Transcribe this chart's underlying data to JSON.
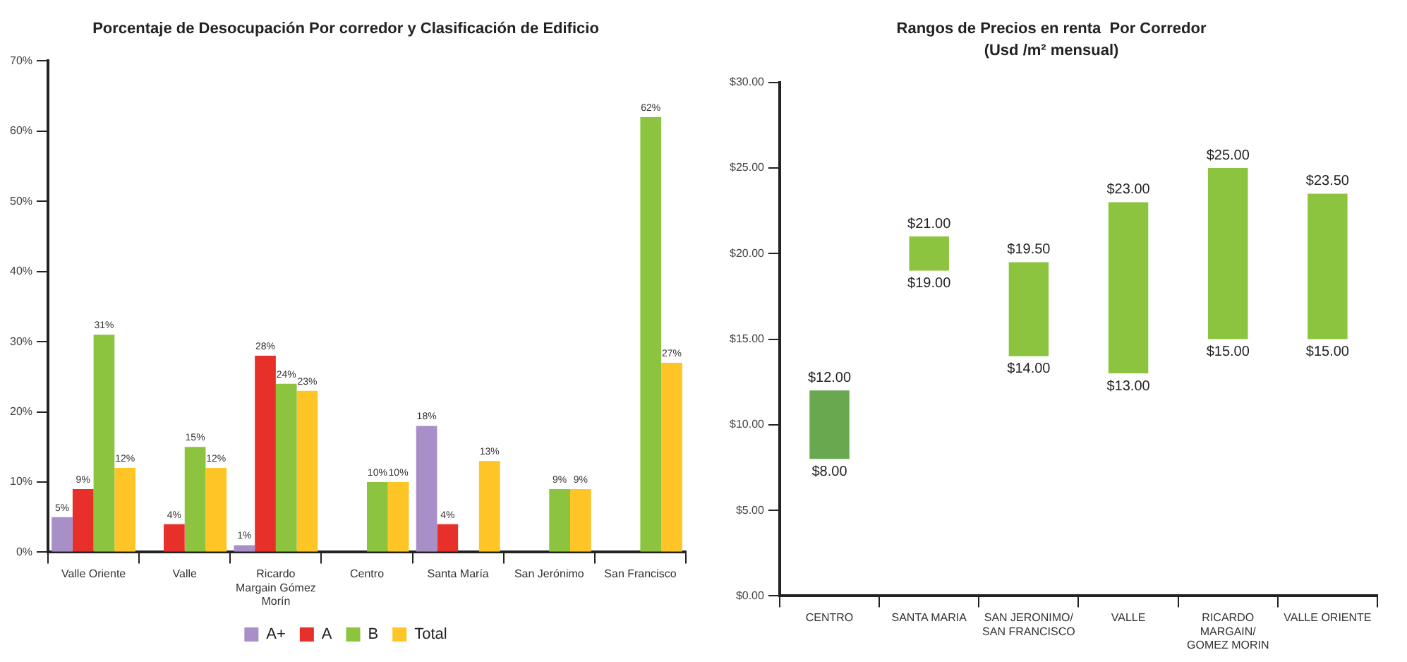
{
  "chart_data": [
    {
      "type": "bar",
      "title": "Porcentaje de Desocupación Por corredor y Clasificación de Edificio",
      "categories": [
        "Valle Oriente",
        "Valle",
        "Ricardo Margain Gómez Morín",
        "Centro",
        "Santa María",
        "San Jerónimo",
        "San Francisco"
      ],
      "series": [
        {
          "name": "A+",
          "color": "#a98fc8",
          "values": [
            5,
            null,
            1,
            null,
            18,
            null,
            null
          ],
          "value_labels": [
            "5%",
            null,
            "1%",
            null,
            "18%",
            null,
            null
          ]
        },
        {
          "name": "A",
          "color": "#e8302a",
          "values": [
            9,
            4,
            28,
            null,
            4,
            null,
            null
          ],
          "value_labels": [
            "9%",
            "4%",
            "28%",
            null,
            "4%",
            null,
            null
          ]
        },
        {
          "name": "B",
          "color": "#8cc43f",
          "values": [
            31,
            15,
            24,
            10,
            null,
            9,
            62
          ],
          "value_labels": [
            "31%",
            "15%",
            "24%",
            "10%",
            null,
            "9%",
            "62%"
          ]
        },
        {
          "name": "Total",
          "color": "#ffc425",
          "values": [
            12,
            12,
            23,
            10,
            13,
            9,
            27
          ],
          "value_labels": [
            "12%",
            "12%",
            "23%",
            "10%",
            "13%",
            "9%",
            "27%"
          ]
        }
      ],
      "ylim": [
        0,
        70
      ],
      "yticks": [
        {
          "value": 0,
          "label": "0%"
        },
        {
          "value": 10,
          "label": "10%"
        },
        {
          "value": 20,
          "label": "20%"
        },
        {
          "value": 30,
          "label": "30%"
        },
        {
          "value": 40,
          "label": "40%"
        },
        {
          "value": 50,
          "label": "50%"
        },
        {
          "value": 60,
          "label": "60%"
        },
        {
          "value": 70,
          "label": "70%"
        }
      ],
      "legend": "bottom"
    },
    {
      "type": "bar",
      "title": "Rangos de Precios en renta  Por Corredor",
      "subtitle": "(Usd /m² mensual)",
      "categories": [
        "CENTRO",
        "SANTA MARIA",
        "SAN JERONIMO/ SAN FRANCISCO",
        "VALLE",
        "RICARDO MARGAIN/ GOMEZ MORIN",
        "VALLE ORIENTE"
      ],
      "base": [
        8,
        19,
        14,
        13,
        15,
        15
      ],
      "values": [
        4,
        2,
        5.5,
        10,
        10,
        8.5
      ],
      "colors": [
        "#6aa84f",
        "#8cc43f",
        "#8cc43f",
        "#8cc43f",
        "#8cc43f",
        "#8cc43f"
      ],
      "ylim": [
        0,
        30
      ],
      "yticks": [
        {
          "value": 0,
          "label": "$0.00"
        },
        {
          "value": 5,
          "label": "$5.00"
        },
        {
          "value": 10,
          "label": "$10.00"
        },
        {
          "value": 15,
          "label": "$15.00"
        },
        {
          "value": 20,
          "label": "$20.00"
        },
        {
          "value": 25,
          "label": "$25.00"
        },
        {
          "value": 30,
          "label": "$30.00"
        }
      ],
      "annotations": [
        {
          "text": "$12.00",
          "x": "CENTRO",
          "y": 12
        },
        {
          "text": "$8.00",
          "x": "CENTRO",
          "y": 8
        },
        {
          "text": "$21.00",
          "x": "SANTA MARIA",
          "y": 21
        },
        {
          "text": "$19.00",
          "x": "SANTA MARIA",
          "y": 19
        },
        {
          "text": "$19.50",
          "x": "SAN JERONIMO/ SAN FRANCISCO",
          "y": 19.5
        },
        {
          "text": "$14.00",
          "x": "SAN JERONIMO/ SAN FRANCISCO",
          "y": 14
        },
        {
          "text": "$23.00",
          "x": "VALLE",
          "y": 23
        },
        {
          "text": "$13.00",
          "x": "VALLE",
          "y": 13
        },
        {
          "text": "$25.00",
          "x": "RICARDO MARGAIN/ GOMEZ MORIN",
          "y": 25
        },
        {
          "text": "$15.00",
          "x": "RICARDO MARGAIN/ GOMEZ MORIN",
          "y": 15
        },
        {
          "text": "$23.50",
          "x": "VALLE ORIENTE",
          "y": 23.5
        },
        {
          "text": "$15.00",
          "x": "VALLE ORIENTE",
          "y": 15
        }
      ]
    }
  ]
}
